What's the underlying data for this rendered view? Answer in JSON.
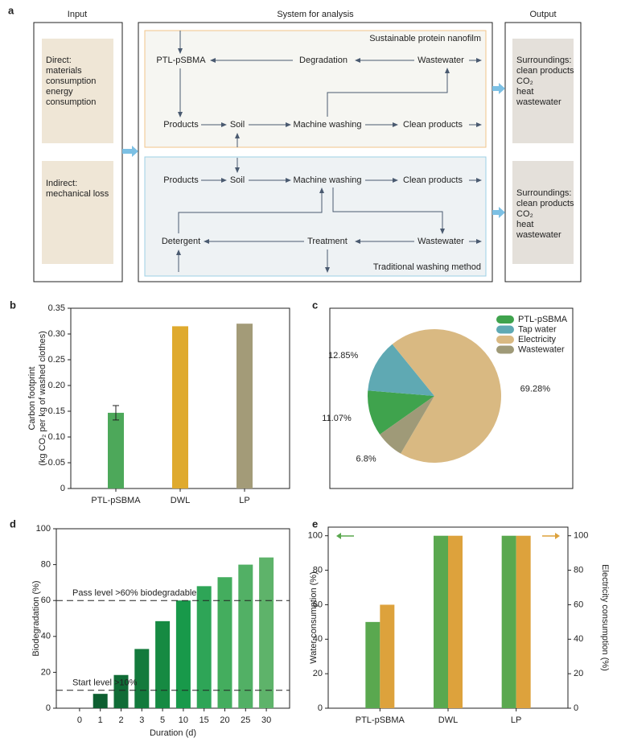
{
  "diagram": {
    "panel": "a",
    "input": {
      "title": "Input",
      "boxes": [
        [
          "Direct:",
          "materials",
          "consumption",
          "energy",
          "consumption"
        ],
        [
          "Indirect:",
          "mechanical loss"
        ]
      ]
    },
    "system": {
      "title": "System for analysis",
      "top": {
        "label": "Sustainable protein nanofilm",
        "nodes": [
          "PTL-pSBMA",
          "Degradation",
          "Wastewater",
          "Products",
          "Soil",
          "Machine washing",
          "Clean products"
        ]
      },
      "bottom": {
        "label": "Traditional washing method",
        "nodes": [
          "Products",
          "Soil",
          "Machine washing",
          "Clean products",
          "Detergent",
          "Treatment",
          "Wastewater"
        ]
      }
    },
    "output": {
      "title": "Output",
      "boxes": [
        [
          "Surroundings:",
          "clean products",
          "CO₂",
          "heat",
          "wastewater"
        ],
        [
          "Surroundings:",
          "clean products",
          "CO₂",
          "heat",
          "wastewater"
        ]
      ]
    }
  },
  "chart_data": [
    {
      "type": "bar",
      "panel": "b",
      "categories": [
        "PTL-pSBMA",
        "DWL",
        "LP"
      ],
      "values": [
        0.147,
        0.315,
        0.32
      ],
      "errors": [
        0.014,
        null,
        null
      ],
      "colors": [
        "#4da85a",
        "#dfaa2e",
        "#a39b78"
      ],
      "ylabel": [
        "Carbon footprint",
        "(kg CO₂ per kg of washed clothes)"
      ],
      "ylim": [
        0,
        0.35
      ],
      "yticks": [
        0,
        0.05,
        {
          "value": 0.1,
          "label": "0.10"
        },
        0.15,
        {
          "value": 0.2,
          "label": "0.20"
        },
        0.25,
        {
          "value": 0.3,
          "label": "0.30"
        },
        0.35
      ]
    },
    {
      "type": "pie",
      "panel": "c",
      "categories": [
        "PTL-pSBMA",
        "Tap water",
        "Electricity",
        "Wastewater"
      ],
      "values": [
        11.07,
        12.85,
        69.28,
        6.8
      ],
      "value_labels": [
        "11.07%",
        "12.85%",
        "69.28%",
        "6.8%"
      ],
      "colors": [
        "#3fa34d",
        "#5fa9b3",
        "#d9b982",
        "#9f9a78"
      ],
      "legend": "upper right"
    },
    {
      "type": "bar",
      "panel": "d",
      "categories": [
        "0",
        "1",
        "2",
        "3",
        "5",
        "10",
        "15",
        "20",
        "25",
        "30"
      ],
      "values": [
        0,
        8,
        18.5,
        33,
        48.5,
        60,
        68,
        73,
        80,
        84
      ],
      "colors": [
        "#0b5a2d",
        "#0d5e30",
        "#106c36",
        "#137a3c",
        "#168a42",
        "#18994a",
        "#2ea557",
        "#44ad5e",
        "#52b065",
        "#5eb36a"
      ],
      "xlabel": "Duration (d)",
      "ylabel": "Biodegradation (%)",
      "ylim": [
        0,
        100
      ],
      "yticks": [
        0,
        20,
        40,
        60,
        80,
        100
      ],
      "reference_lines": [
        {
          "value": 60,
          "label": "Pass level >60% biodegradable"
        },
        {
          "value": 10,
          "label": "Start level >10%"
        }
      ]
    },
    {
      "type": "bar",
      "panel": "e",
      "categories": [
        "PTL-pSBMA",
        "DWL",
        "LP"
      ],
      "series": [
        {
          "color": "#5aa84f",
          "values": [
            50,
            100,
            100
          ]
        },
        {
          "color": "#dda23c",
          "values": [
            60,
            100,
            100
          ],
          "axis": "y2"
        }
      ],
      "ylabel": "Water consumption (%)",
      "y2label": "Electricity consumption (%)",
      "ylim": [
        0,
        105
      ],
      "yticks": [
        0,
        20,
        40,
        60,
        80,
        100
      ],
      "y2lim": [
        0,
        105
      ],
      "y2ticks": [
        0,
        20,
        40,
        60,
        80,
        100
      ]
    }
  ]
}
